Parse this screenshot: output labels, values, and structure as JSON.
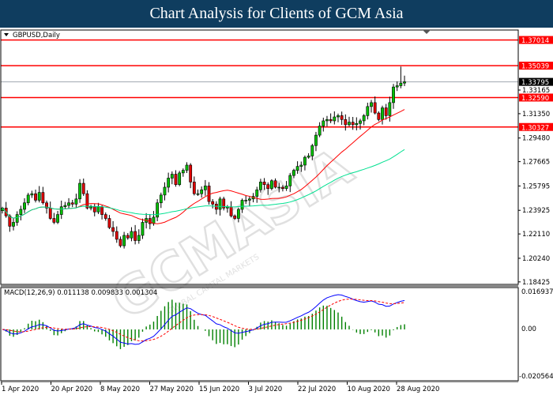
{
  "header": {
    "title": "Chart Analysis for Clients of GCM Asia"
  },
  "colors": {
    "title_bg": "#0f3d5f",
    "level_line": "#ff0000",
    "bull": "#00c000",
    "bear": "#e00000",
    "ma_fast": "#ff0000",
    "ma_slow": "#00e090",
    "macd": "#0000ff",
    "signal": "#ff0000",
    "histogram": "#008000",
    "current_price_bg": "#000000"
  },
  "watermark": {
    "text": "GCMASIA",
    "subtext": "GLOBAL CAPITAL MARKETS"
  },
  "chart_data": [
    {
      "type": "candlestick",
      "symbol_label": "GBPUSD,Daily",
      "close": [
        1.241,
        1.235,
        1.227,
        1.23,
        1.236,
        1.24,
        1.245,
        1.251,
        1.252,
        1.247,
        1.253,
        1.245,
        1.241,
        1.233,
        1.23,
        1.236,
        1.242,
        1.243,
        1.245,
        1.244,
        1.248,
        1.26,
        1.252,
        1.241,
        1.242,
        1.238,
        1.242,
        1.236,
        1.233,
        1.226,
        1.223,
        1.217,
        1.212,
        1.22,
        1.218,
        1.223,
        1.216,
        1.22,
        1.23,
        1.233,
        1.229,
        1.234,
        1.245,
        1.251,
        1.257,
        1.264,
        1.267,
        1.259,
        1.268,
        1.27,
        1.274,
        1.261,
        1.252,
        1.252,
        1.255,
        1.258,
        1.246,
        1.244,
        1.24,
        1.248,
        1.241,
        1.242,
        1.235,
        1.233,
        1.24,
        1.247,
        1.247,
        1.248,
        1.25,
        1.255,
        1.261,
        1.259,
        1.256,
        1.262,
        1.257,
        1.257,
        1.256,
        1.258,
        1.266,
        1.27,
        1.273,
        1.274,
        1.28,
        1.281,
        1.289,
        1.297,
        1.304,
        1.308,
        1.309,
        1.308,
        1.311,
        1.312,
        1.309,
        1.305,
        1.307,
        1.305,
        1.306,
        1.308,
        1.312,
        1.319,
        1.322,
        1.314,
        1.309,
        1.318,
        1.312,
        1.322,
        1.334,
        1.335,
        1.337,
        1.33795
      ],
      "x_tick_labels": [
        "1 Apr 2020",
        "20 Apr 2020",
        "8 May 2020",
        "27 May 2020",
        "15 Jun 2020",
        "3 Jul 2020",
        "22 Jul 2020",
        "10 Aug 2020",
        "28 Aug 2020"
      ],
      "y_tick_labels": [
        "1.33165",
        "1.31350",
        "1.29480",
        "1.27665",
        "1.25795",
        "1.23925",
        "1.22110",
        "1.20240",
        "1.18425"
      ],
      "levels": [
        "1.37014",
        "1.35039",
        "1.32590",
        "1.30327"
      ],
      "current_price": "1.33795",
      "moving_averages": [
        {
          "type": "SMA",
          "period": 20,
          "color": "#ff0000"
        },
        {
          "type": "SMA",
          "period": 50,
          "color": "#00e090"
        }
      ],
      "ylim": [
        1.178,
        1.376
      ]
    },
    {
      "type": "macd",
      "label": "MACD(12,26,9) 0.011138 0.009833 0.001304",
      "params": [
        12,
        26,
        9
      ],
      "y_tick_labels": [
        "0.016937",
        "0.00",
        "-0.020564"
      ],
      "ylim": [
        -0.0229,
        0.0173
      ]
    }
  ]
}
